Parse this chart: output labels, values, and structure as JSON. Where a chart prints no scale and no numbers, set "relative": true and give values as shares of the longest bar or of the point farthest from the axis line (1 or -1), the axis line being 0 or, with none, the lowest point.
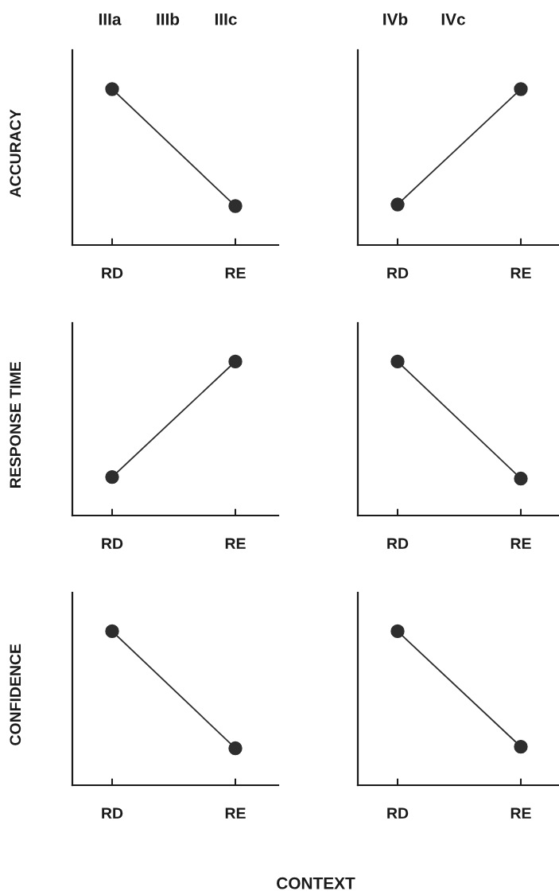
{
  "chart_data": [
    {
      "type": "line",
      "ylabel": "ACCURACY",
      "annotations": [
        "IIIa",
        "IIIb",
        "IIIc"
      ],
      "categories": [
        "RD",
        "RE"
      ],
      "series": [
        {
          "color": "#2e2e2e",
          "values": [
            1,
            0.25
          ]
        }
      ],
      "relative": true,
      "marker": "circle",
      "line_style": "solid"
    },
    {
      "type": "line",
      "annotations": [
        "IVb",
        "IVc"
      ],
      "categories": [
        "RD",
        "RE"
      ],
      "series": [
        {
          "color": "#2e2e2e",
          "values": [
            0.26,
            1
          ]
        }
      ],
      "relative": true,
      "marker": "circle",
      "line_style": "solid"
    },
    {
      "type": "line",
      "ylabel": "RESPONSE TIME",
      "categories": [
        "RD",
        "RE"
      ],
      "series": [
        {
          "color": "#2e2e2e",
          "values": [
            0.25,
            1
          ]
        }
      ],
      "relative": true,
      "marker": "circle",
      "line_style": "solid"
    },
    {
      "type": "line",
      "categories": [
        "RD",
        "RE"
      ],
      "series": [
        {
          "color": "#2e2e2e",
          "values": [
            1,
            0.24
          ]
        }
      ],
      "relative": true,
      "marker": "circle",
      "line_style": "solid"
    },
    {
      "type": "line",
      "ylabel": "CONFIDENCE",
      "xlabel": "CONTEXT",
      "categories": [
        "RD",
        "RE"
      ],
      "series": [
        {
          "color": "#2e2e2e",
          "values": [
            1,
            0.24
          ]
        }
      ],
      "relative": true,
      "marker": "circle",
      "line_style": "solid"
    },
    {
      "type": "line",
      "categories": [
        "RD",
        "RE"
      ],
      "series": [
        {
          "color": "#2e2e2e",
          "values": [
            1,
            0.25
          ]
        }
      ],
      "relative": true,
      "marker": "circle",
      "line_style": "solid"
    }
  ]
}
